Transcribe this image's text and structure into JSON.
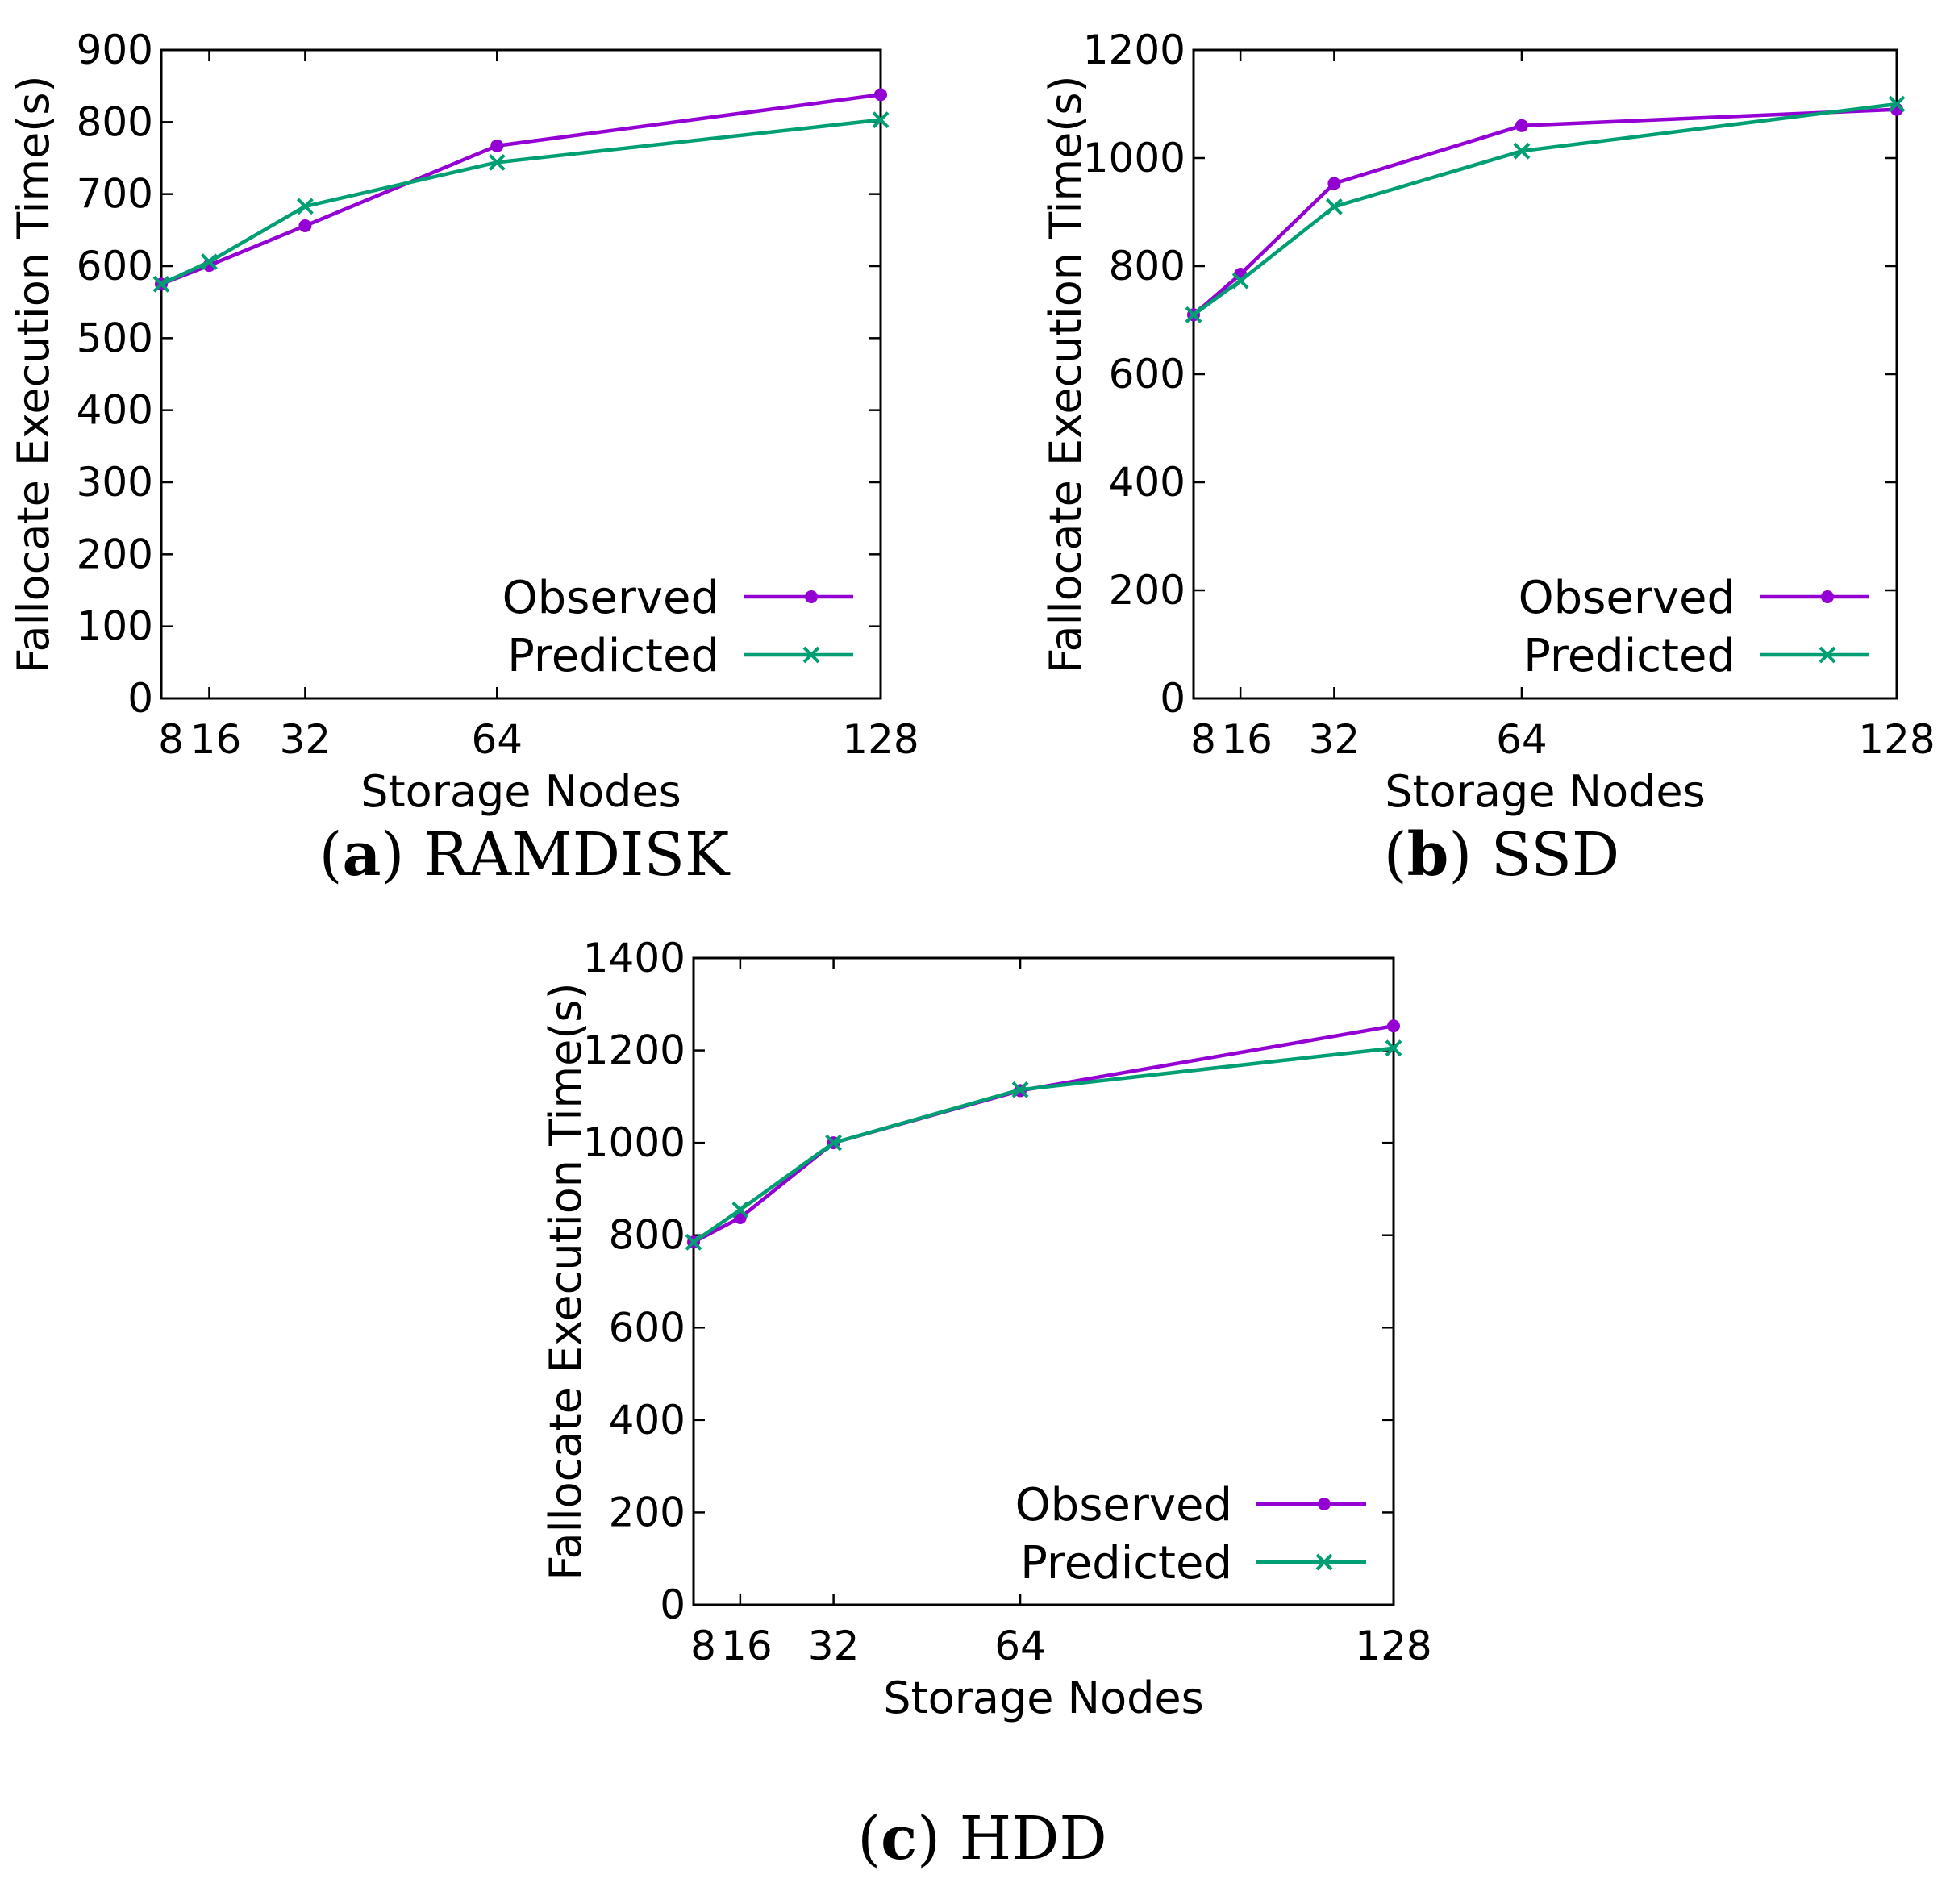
{
  "chart_data": [
    {
      "type": "line",
      "caption_letter": "a",
      "caption_text": "RAMDISK",
      "xlabel": "Storage Nodes",
      "ylabel": "Fallocate Execution Time(s)",
      "x": [
        8,
        16,
        32,
        64,
        128
      ],
      "xticks": [
        "8",
        "16",
        "32",
        "64",
        "128"
      ],
      "ylim": [
        0,
        900
      ],
      "yticks": [
        "0",
        "100",
        "200",
        "300",
        "400",
        "500",
        "600",
        "700",
        "800",
        "900"
      ],
      "legend_position": "bottom-right",
      "series": [
        {
          "name": "Observed",
          "color": "#9400d3",
          "marker": "circle",
          "values": [
            575,
            601,
            656,
            767,
            838
          ]
        },
        {
          "name": "Predicted",
          "color": "#009e73",
          "marker": "x",
          "values": [
            575,
            606,
            683,
            744,
            803
          ]
        }
      ]
    },
    {
      "type": "line",
      "caption_letter": "b",
      "caption_text": "SSD",
      "xlabel": "Storage Nodes",
      "ylabel": "Fallocate Execution Time(s)",
      "x": [
        8,
        16,
        32,
        64,
        128
      ],
      "xticks": [
        "8",
        "16",
        "32",
        "64",
        "128"
      ],
      "ylim": [
        0,
        1200
      ],
      "yticks": [
        "0",
        "200",
        "400",
        "600",
        "800",
        "1000",
        "1200"
      ],
      "legend_position": "bottom-right",
      "series": [
        {
          "name": "Observed",
          "color": "#9400d3",
          "marker": "circle",
          "values": [
            710,
            785,
            953,
            1060,
            1090
          ]
        },
        {
          "name": "Predicted",
          "color": "#009e73",
          "marker": "x",
          "values": [
            710,
            773,
            910,
            1013,
            1100
          ]
        }
      ]
    },
    {
      "type": "line",
      "caption_letter": "c",
      "caption_text": "HDD",
      "xlabel": "Storage Nodes",
      "ylabel": "Fallocate Execution Time(s)",
      "x": [
        8,
        16,
        32,
        64,
        128
      ],
      "xticks": [
        "8",
        "16",
        "32",
        "64",
        "128"
      ],
      "ylim": [
        0,
        1400
      ],
      "yticks": [
        "0",
        "200",
        "400",
        "600",
        "800",
        "1000",
        "1200",
        "1400"
      ],
      "legend_position": "bottom-right",
      "series": [
        {
          "name": "Observed",
          "color": "#9400d3",
          "marker": "circle",
          "values": [
            785,
            838,
            1000,
            1113,
            1253
          ]
        },
        {
          "name": "Predicted",
          "color": "#009e73",
          "marker": "x",
          "values": [
            785,
            855,
            1000,
            1115,
            1205
          ]
        }
      ]
    }
  ]
}
